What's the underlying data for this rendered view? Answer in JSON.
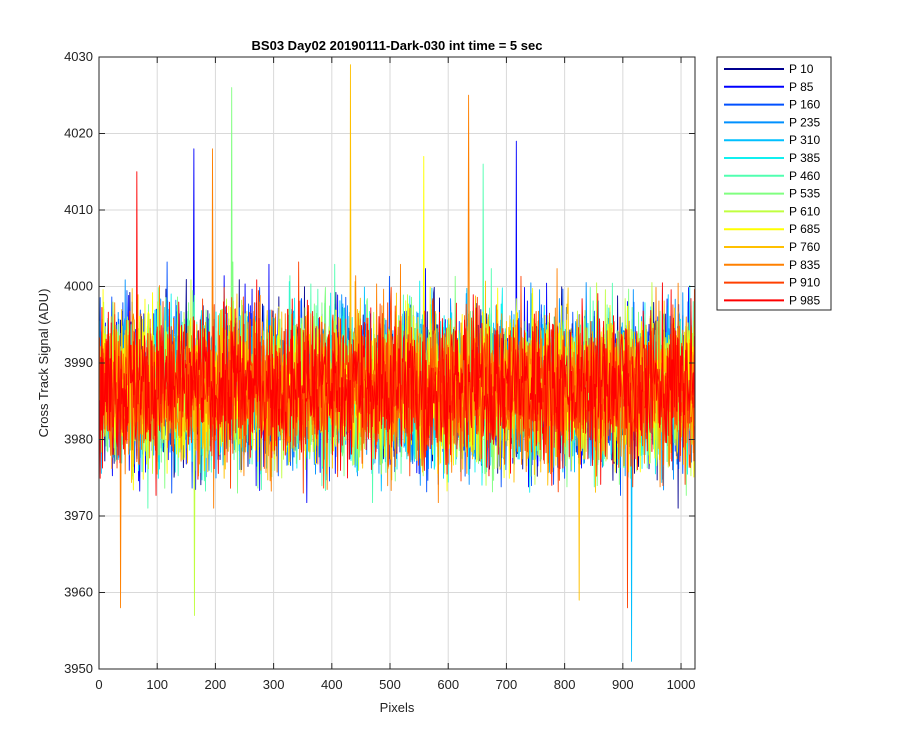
{
  "chart_data": {
    "type": "line",
    "title": "BS03 Day02 20190111-Dark-030 int time = 5 sec",
    "xlabel": "Pixels",
    "ylabel": "Cross Track Signal (ADU)",
    "xlim": [
      0,
      1024
    ],
    "ylim": [
      3950,
      4030
    ],
    "xticks": [
      0,
      100,
      200,
      300,
      400,
      500,
      600,
      700,
      800,
      900,
      1000
    ],
    "yticks": [
      3950,
      3960,
      3970,
      3980,
      3990,
      4000,
      4010,
      4020,
      4030
    ],
    "grid": true,
    "legend_position": "outside-top-right",
    "samples_per_series": 1024,
    "noise_center": 3987,
    "noise_spread": 7,
    "series": [
      {
        "name": "P 10",
        "color": "#00008f"
      },
      {
        "name": "P 85",
        "color": "#0000ff"
      },
      {
        "name": "P 160",
        "color": "#0050ff"
      },
      {
        "name": "P 235",
        "color": "#0090ff"
      },
      {
        "name": "P 310",
        "color": "#00c0ff"
      },
      {
        "name": "P 385",
        "color": "#10f0f0"
      },
      {
        "name": "P 460",
        "color": "#50ffb0"
      },
      {
        "name": "P 535",
        "color": "#80ff80"
      },
      {
        "name": "P 610",
        "color": "#c0ff40"
      },
      {
        "name": "P 685",
        "color": "#ffff00"
      },
      {
        "name": "P 760",
        "color": "#ffc000"
      },
      {
        "name": "P 835",
        "color": "#ff8000"
      },
      {
        "name": "P 910",
        "color": "#ff4000"
      },
      {
        "name": "P 985",
        "color": "#ff0000"
      }
    ],
    "spikes": [
      {
        "x": 228,
        "y": 4026,
        "series": "P 535"
      },
      {
        "x": 432,
        "y": 4029,
        "series": "P 760"
      },
      {
        "x": 635,
        "y": 4025,
        "series": "P 835"
      },
      {
        "x": 717,
        "y": 4019,
        "series": "P 85"
      },
      {
        "x": 163,
        "y": 4018,
        "series": "P 85"
      },
      {
        "x": 195,
        "y": 4018,
        "series": "P 835"
      },
      {
        "x": 915,
        "y": 3951,
        "series": "P 310"
      },
      {
        "x": 37,
        "y": 3958,
        "series": "P 835"
      },
      {
        "x": 164,
        "y": 3957,
        "series": "P 610"
      },
      {
        "x": 825,
        "y": 3959,
        "series": "P 760"
      },
      {
        "x": 908,
        "y": 3958,
        "series": "P 910"
      },
      {
        "x": 65,
        "y": 4015,
        "series": "P 985"
      },
      {
        "x": 558,
        "y": 4017,
        "series": "P 685"
      },
      {
        "x": 660,
        "y": 4016,
        "series": "P 460"
      }
    ]
  }
}
